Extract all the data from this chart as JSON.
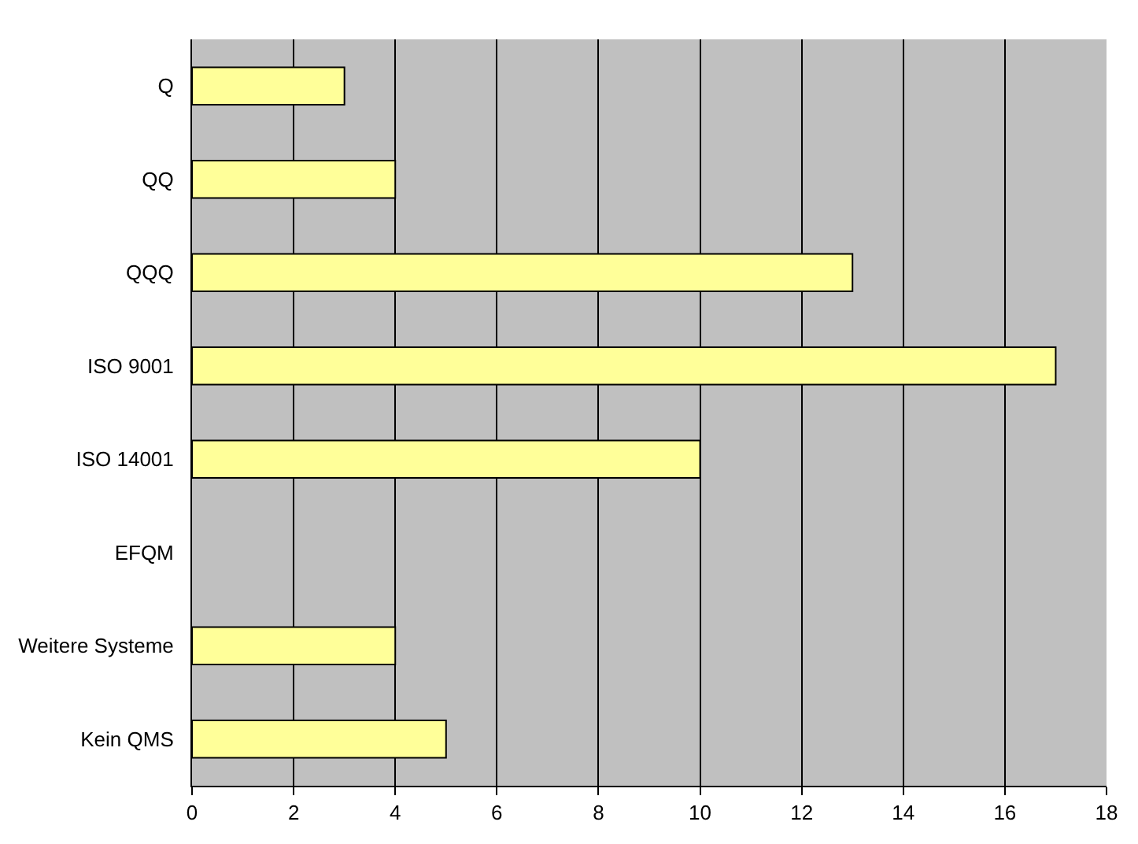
{
  "chart_data": {
    "type": "bar",
    "orientation": "horizontal",
    "categories": [
      "Q",
      "QQ",
      "QQQ",
      "ISO 9001",
      "ISO 14001",
      "EFQM",
      "Weitere Systeme",
      "Kein QMS"
    ],
    "values": [
      3,
      4,
      13,
      17,
      10,
      0,
      4,
      5
    ],
    "color": "#ffff99",
    "xlim": [
      0,
      18
    ],
    "xticks": [
      0,
      2,
      4,
      6,
      8,
      10,
      12,
      14,
      16,
      18
    ],
    "grid": "x"
  }
}
